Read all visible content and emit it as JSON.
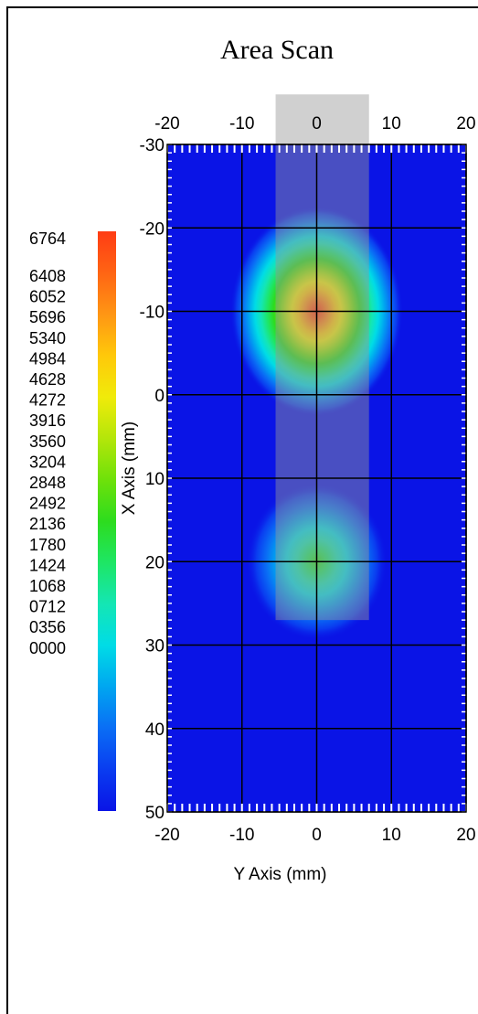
{
  "chart_data": {
    "type": "heatmap",
    "title": "Area Scan",
    "xlabel": "Y Axis (mm)",
    "ylabel": "X Axis (mm)",
    "x_range": [
      -20,
      20
    ],
    "y_range": [
      -30,
      50
    ],
    "x_ticks": [
      "-20",
      "-10",
      "0",
      "10",
      "20"
    ],
    "y_ticks": [
      "-30",
      "-20",
      "-10",
      "0",
      "10",
      "20",
      "30",
      "40",
      "50"
    ],
    "grid": true,
    "colorbar": {
      "placement": "left",
      "min": 0,
      "max": 6764,
      "labels": [
        "6764",
        "6408",
        "6052",
        "5696",
        "5340",
        "4984",
        "4628",
        "4272",
        "3916",
        "3560",
        "3204",
        "2848",
        "2492",
        "2136",
        "1780",
        "1424",
        "1068",
        "0712",
        "0356",
        "0000"
      ],
      "colors": [
        "#0a14e6",
        "#0a3cf0",
        "#0a6ef5",
        "#00a6f0",
        "#00dce6",
        "#14e6b4",
        "#1ee664",
        "#2ddc1e",
        "#6ee10a",
        "#b4e60a",
        "#f0eb0a",
        "#ffc80a",
        "#ff9614",
        "#ff6414",
        "#ff3c14"
      ]
    },
    "peaks": [
      {
        "name": "",
        "x": 0,
        "y": -10,
        "value": 6764
      },
      {
        "name": "",
        "x": 0,
        "y": 20,
        "value": 3200
      }
    ],
    "probe_overlay": {
      "x_range": [
        -5.5,
        7
      ],
      "y_range": [
        -36,
        27
      ]
    }
  }
}
